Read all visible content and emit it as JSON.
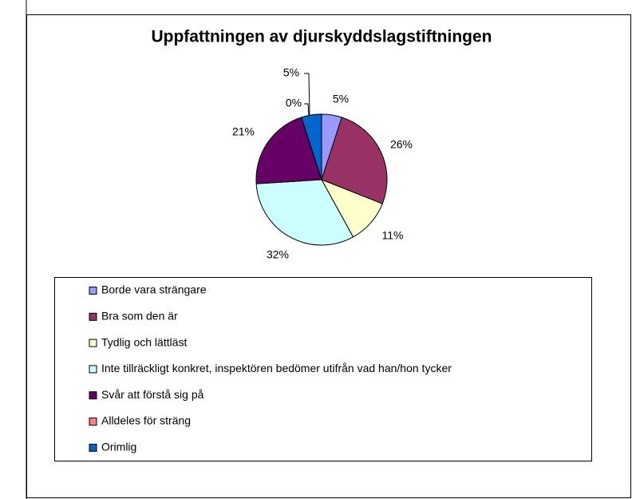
{
  "chart_data": {
    "type": "pie",
    "title": "Uppfattningen av djurskyddslagstiftningen",
    "categories": [
      "Borde vara strängare",
      "Bra som den är",
      "Tydlig och lättläst",
      "Inte tillräckligt konkret, inspektören bedömer utifrån vad han/hon tycker",
      "Svår att förstå sig på",
      "Alldeles för sträng",
      "Orimlig"
    ],
    "values": [
      5,
      26,
      11,
      32,
      21,
      0,
      5
    ],
    "value_labels": [
      "5%",
      "26%",
      "11%",
      "32%",
      "21%",
      "0%",
      "5%"
    ],
    "colors": [
      "#9999ff",
      "#993366",
      "#ffffcc",
      "#ccffff",
      "#660066",
      "#ff8080",
      "#0066cc"
    ],
    "legend": "bottom"
  }
}
